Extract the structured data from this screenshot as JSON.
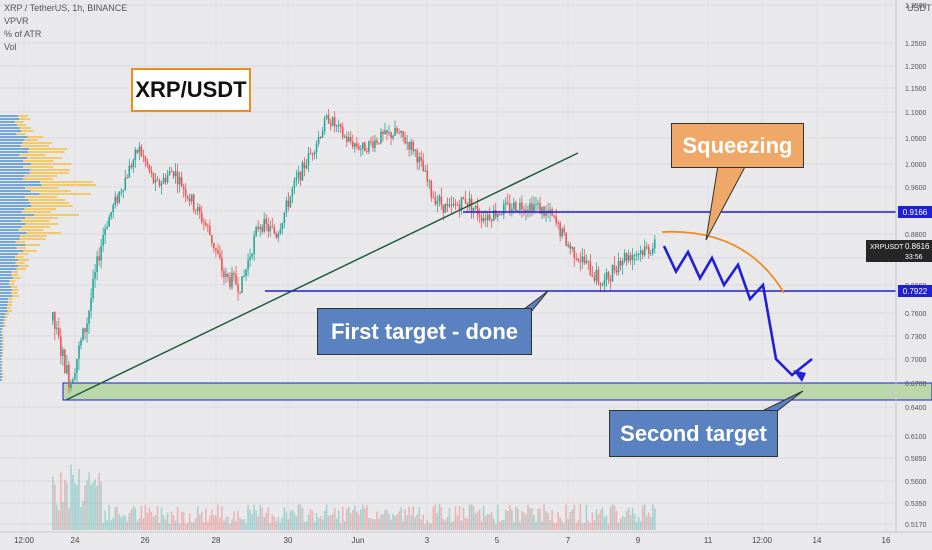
{
  "header": {
    "symbol_line": "XRP / TetherUS, 1h, BINANCE",
    "indicators": [
      "VPVR",
      "% of ATR",
      "Vol"
    ]
  },
  "price_axis": {
    "unit": "USDT",
    "ticks": [
      "1.3500",
      "1.2500",
      "1.2000",
      "1.1500",
      "1.1000",
      "1.0500",
      "1.0000",
      "0.9600",
      "0.9200",
      "0.8800",
      "0.8400",
      "0.8000",
      "0.7600",
      "0.7300",
      "0.7000",
      "0.6700",
      "0.6400",
      "0.6100",
      "0.5850",
      "0.5600",
      "0.5350",
      "0.5170"
    ],
    "badge_top": "0.9166",
    "badge_mid_symbol": "XRPUSDT",
    "badge_mid_price": "0.8616",
    "badge_mid_timer": "33:56",
    "badge_bottom": "0.7922"
  },
  "time_axis": {
    "ticks": [
      "12:00",
      "24",
      "26",
      "28",
      "30",
      "Jun",
      "3",
      "5",
      "7",
      "9",
      "11",
      "12:00",
      "14",
      "16"
    ]
  },
  "annotations": {
    "title_box": "XRP/USDT",
    "squeeze_label": "Squeezing",
    "first_target_label": "First target - done",
    "second_target_label": "Second target"
  },
  "colors": {
    "background": "#e9e9ec",
    "candle_up": "#26a69a",
    "candle_down": "#ef5350",
    "level_line": "#1f1fd6",
    "trendline": "#1f5c3b",
    "squeeze_arc": "#f08c1f",
    "callout_orange": "#f0a868",
    "callout_blue": "#5b82c0",
    "target_zone": "#b9d7a8"
  },
  "chart_data": {
    "type": "candlestick",
    "symbol": "XRP / TetherUS",
    "timeframe": "1h",
    "exchange": "BINANCE",
    "horizontal_levels": [
      0.9166,
      0.7922
    ],
    "target_zone": [
      0.655,
      0.672
    ],
    "last_price": 0.8616,
    "price_path": [
      0.75,
      0.67,
      0.75,
      0.89,
      0.96,
      1.03,
      0.96,
      0.99,
      0.94,
      0.89,
      0.81,
      0.8,
      0.9,
      0.88,
      0.96,
      1.02,
      1.09,
      1.05,
      1.03,
      1.05,
      1.06,
      1.03,
      0.95,
      0.92,
      0.94,
      0.91,
      0.92,
      0.93,
      0.93,
      0.91,
      0.86,
      0.83,
      0.8,
      0.84,
      0.85,
      0.86
    ],
    "projection_path": [
      0.86,
      0.82,
      0.85,
      0.81,
      0.84,
      0.8,
      0.83,
      0.78,
      0.8,
      0.7,
      0.68,
      0.7
    ]
  }
}
